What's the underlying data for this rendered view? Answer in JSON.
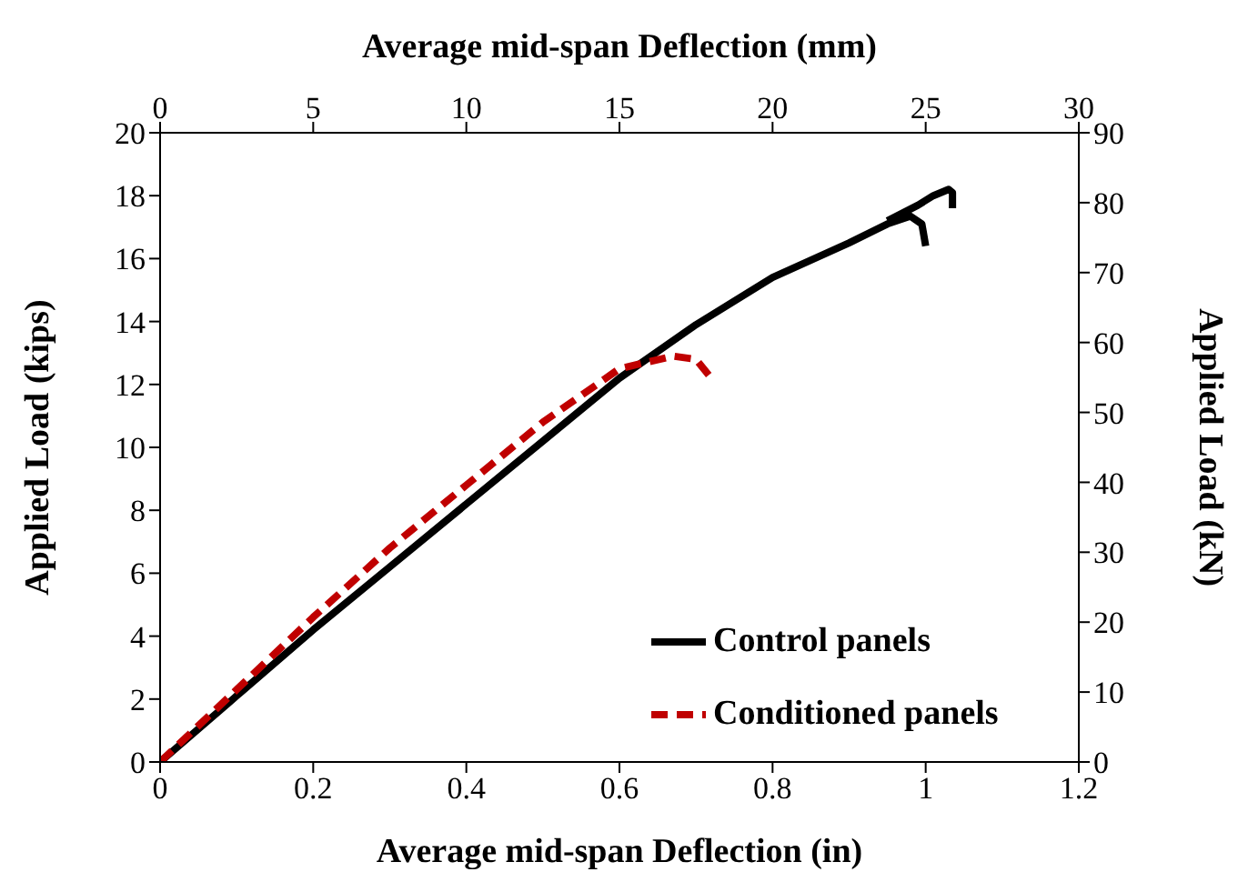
{
  "chart_data": {
    "type": "line",
    "xlabel": "Average mid-span Deflection (in)",
    "x2label": "Average mid-span Deflection (mm)",
    "ylabel": "Applied Load (kips)",
    "y2label": "Applied Load (kN)",
    "xlim": [
      0,
      1.2
    ],
    "xticks": [
      0,
      0.2,
      0.4,
      0.6,
      0.8,
      1,
      1.2
    ],
    "x2lim": [
      0,
      30
    ],
    "x2ticks": [
      0,
      5,
      10,
      15,
      20,
      25,
      30
    ],
    "ylim": [
      0,
      20
    ],
    "yticks": [
      0,
      2,
      4,
      6,
      8,
      10,
      12,
      14,
      16,
      18,
      20
    ],
    "y2lim": [
      0,
      90
    ],
    "y2ticks": [
      0,
      10,
      20,
      30,
      40,
      50,
      60,
      70,
      80,
      90
    ],
    "grid": false,
    "legend": "bottom right",
    "marker": "none",
    "series": [
      {
        "name": "Control panels",
        "color": "#000000",
        "line_style": "solid",
        "x": [
          0,
          0.1,
          0.2,
          0.3,
          0.4,
          0.5,
          0.6,
          0.7,
          0.8,
          0.9,
          0.95,
          0.98,
          0.995,
          1.0,
          null,
          0.95,
          0.99,
          1.01,
          1.03,
          1.035,
          1.035
        ],
        "values": [
          0,
          2.1,
          4.2,
          6.2,
          8.2,
          10.2,
          12.2,
          13.9,
          15.4,
          16.5,
          17.1,
          17.35,
          17.1,
          16.4,
          null,
          17.2,
          17.7,
          18.0,
          18.2,
          18.1,
          17.6
        ]
      },
      {
        "name": "Conditioned panels",
        "color": "#c00000",
        "line_style": "dashed",
        "x": [
          0,
          0.1,
          0.2,
          0.3,
          0.4,
          0.5,
          0.6,
          0.67,
          0.7,
          0.72
        ],
        "values": [
          0,
          2.3,
          4.6,
          6.8,
          8.8,
          10.8,
          12.5,
          12.9,
          12.8,
          12.2
        ]
      }
    ]
  }
}
